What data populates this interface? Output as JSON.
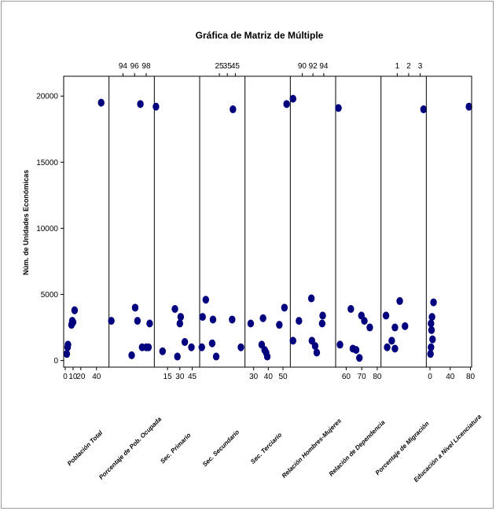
{
  "chart_data": {
    "type": "scatter",
    "title": "Gráfica de Matriz de Múltiple",
    "ylabel": "Núm. de Unidades Económicas",
    "ylim": [
      -500,
      21500
    ],
    "yticks": [
      0,
      5000,
      10000,
      15000,
      20000
    ],
    "ytick_labels": [
      "0",
      "5000",
      "10000",
      "15000",
      "20000"
    ],
    "marker_color": "#00007f",
    "grid": false,
    "panels": [
      {
        "name": "Población Total",
        "xlim": [
          -2,
          56
        ],
        "bottom_ticks": [
          0,
          10,
          20,
          40
        ],
        "bottom_tick_labels": [
          "0",
          "10",
          "20",
          "40"
        ],
        "top_ticks": [],
        "top_tick_labels": [],
        "points": [
          [
            2,
            500
          ],
          [
            3,
            1000
          ],
          [
            3.5,
            1200
          ],
          [
            8,
            2700
          ],
          [
            9,
            3000
          ],
          [
            10,
            2900
          ],
          [
            12,
            3800
          ],
          [
            46,
            19500
          ]
        ]
      },
      {
        "name": "Porcentaje de Pob. Ocupada",
        "xlim": [
          91.6,
          99.4
        ],
        "bottom_ticks": [],
        "bottom_tick_labels": [],
        "top_ticks": [
          94,
          96,
          98
        ],
        "top_tick_labels": [
          "94",
          "96",
          "98"
        ],
        "points": [
          [
            92,
            3000
          ],
          [
            95.5,
            400
          ],
          [
            96.1,
            4000
          ],
          [
            96.5,
            3000
          ],
          [
            97,
            19400
          ],
          [
            97.3,
            1000
          ],
          [
            98,
            1000
          ],
          [
            98.4,
            1000
          ],
          [
            98.6,
            2800
          ]
        ]
      },
      {
        "name": "Sec. Primario",
        "xlim": [
          -1,
          54
        ],
        "bottom_ticks": [
          15,
          30,
          45
        ],
        "bottom_tick_labels": [
          "15",
          "30",
          "45"
        ],
        "top_ticks": [],
        "top_tick_labels": [],
        "points": [
          [
            1,
            19200
          ],
          [
            9,
            700
          ],
          [
            24,
            3900
          ],
          [
            27,
            300
          ],
          [
            30,
            2800
          ],
          [
            31,
            3300
          ],
          [
            36,
            1400
          ],
          [
            44,
            1000
          ]
        ]
      },
      {
        "name": "Sec. Secundario",
        "xlim": [
          0.3,
          57.1
        ],
        "bottom_ticks": [],
        "bottom_tick_labels": [],
        "top_ticks": [
          25,
          35,
          45
        ],
        "top_tick_labels": [
          "25",
          "35",
          "45"
        ],
        "points": [
          [
            3,
            1000
          ],
          [
            4,
            3300
          ],
          [
            8,
            4600
          ],
          [
            16,
            1300
          ],
          [
            17,
            3100
          ],
          [
            21,
            300
          ],
          [
            41,
            3100
          ],
          [
            42,
            19000
          ],
          [
            52,
            1000
          ]
        ]
      },
      {
        "name": "Sec. Terciario",
        "xlim": [
          24.1,
          55
        ],
        "bottom_ticks": [
          30,
          40,
          50
        ],
        "bottom_tick_labels": [
          "30",
          "40",
          "50"
        ],
        "top_ticks": [],
        "top_tick_labels": [],
        "points": [
          [
            28,
            2800
          ],
          [
            35.5,
            1200
          ],
          [
            36.4,
            3200
          ],
          [
            37.5,
            800
          ],
          [
            38.5,
            600
          ],
          [
            39.3,
            300
          ],
          [
            47.5,
            2700
          ],
          [
            51,
            4000
          ],
          [
            52.5,
            19400
          ]
        ]
      },
      {
        "name": "Relación Hombres-Mujeres",
        "xlim": [
          87.8,
          96.2
        ],
        "bottom_ticks": [],
        "bottom_tick_labels": [],
        "top_ticks": [
          90,
          92,
          94
        ],
        "top_tick_labels": [
          "90",
          "92",
          "94"
        ],
        "points": [
          [
            88.3,
            19800
          ],
          [
            88.3,
            1500
          ],
          [
            89.4,
            3000
          ],
          [
            91.7,
            4700
          ],
          [
            91.8,
            1500
          ],
          [
            92.4,
            1100
          ],
          [
            92.7,
            600
          ],
          [
            93.7,
            2800
          ],
          [
            93.8,
            3400
          ]
        ]
      },
      {
        "name": "Relación de Dependencia",
        "xlim": [
          53.2,
          82.4
        ],
        "bottom_ticks": [
          60,
          70,
          80
        ],
        "bottom_tick_labels": [
          "60",
          "70",
          "80"
        ],
        "top_ticks": [],
        "top_tick_labels": [],
        "points": [
          [
            55,
            19100
          ],
          [
            56,
            1200
          ],
          [
            63,
            3900
          ],
          [
            64.3,
            900
          ],
          [
            66.4,
            800
          ],
          [
            68.5,
            200
          ],
          [
            69.8,
            3400
          ],
          [
            71.7,
            3000
          ],
          [
            75.2,
            2500
          ]
        ]
      },
      {
        "name": "Porcentaje de Migración",
        "xlim": [
          -0.42,
          3.54
        ],
        "bottom_ticks": [],
        "bottom_tick_labels": [],
        "top_ticks": [
          1,
          2,
          3
        ],
        "top_tick_labels": [
          "1",
          "2",
          "3"
        ],
        "points": [
          [
            0.02,
            3400
          ],
          [
            0.12,
            1000
          ],
          [
            0.52,
            1500
          ],
          [
            0.8,
            900
          ],
          [
            0.8,
            2500
          ],
          [
            1.22,
            4500
          ],
          [
            1.68,
            2600
          ],
          [
            3.3,
            19000
          ]
        ]
      },
      {
        "name": "Educación a Nivel Licenciatura",
        "xlim": [
          -7.3,
          82.3
        ],
        "bottom_ticks": [
          0,
          40,
          80
        ],
        "bottom_tick_labels": [
          "0",
          "40",
          "80"
        ],
        "top_ticks": [],
        "top_tick_labels": [],
        "points": [
          [
            1,
            500
          ],
          [
            2,
            1000
          ],
          [
            2,
            2800
          ],
          [
            3,
            2300
          ],
          [
            4,
            3300
          ],
          [
            5,
            1600
          ],
          [
            7,
            4400
          ],
          [
            77,
            19200
          ]
        ]
      }
    ]
  }
}
